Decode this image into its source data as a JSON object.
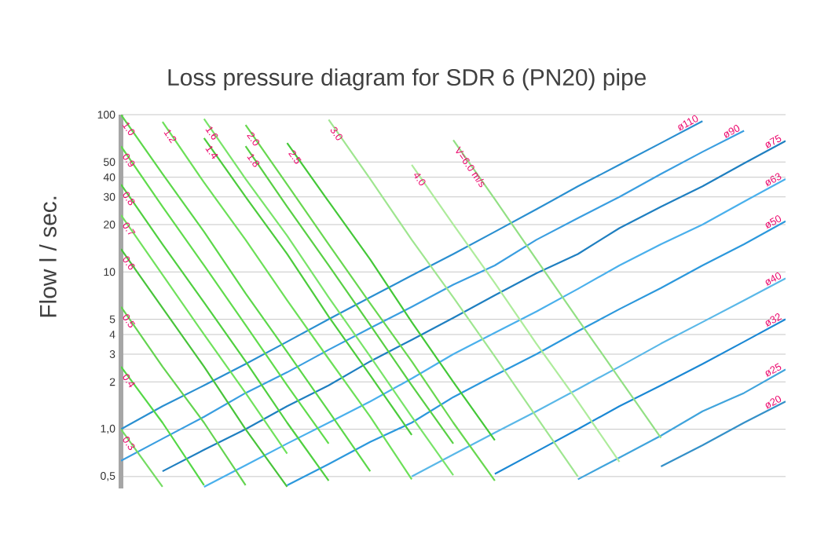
{
  "chart_data": {
    "type": "line",
    "title": "Loss pressure diagram for SDR 6 (PN20) pipe",
    "ylabel": "Flow l / sec.",
    "categories": [
      null,
      null,
      null,
      null,
      null,
      null,
      null,
      null,
      null,
      null,
      null,
      null,
      null,
      null,
      null,
      null,
      null
    ],
    "log": "y",
    "ylim": [
      0.42,
      100
    ],
    "yticks": [
      {
        "value": 0.5,
        "label": "0,5"
      },
      {
        "value": 1,
        "label": "1,0"
      },
      2,
      3,
      4,
      5,
      10,
      20,
      30,
      40,
      50,
      100
    ],
    "tick_labels": "y",
    "grid": true,
    "legend": false,
    "marker": "none",
    "line_style": "solid",
    "series": [
      {
        "name": "ø110",
        "color": "#2a8fd0",
        "values": [
          1.0,
          1.4,
          1.9,
          2.6,
          3.6,
          5.0,
          6.9,
          9.5,
          13,
          18,
          25,
          35,
          48,
          66,
          91,
          null,
          null
        ]
      },
      {
        "name": "ø90",
        "color": "#3a9ee0",
        "values": [
          0.63,
          0.87,
          1.2,
          1.7,
          2.3,
          3.2,
          4.4,
          6.0,
          8.3,
          11,
          16,
          22,
          30,
          42,
          58,
          79,
          null
        ]
      },
      {
        "name": "ø75",
        "color": "#1f7fc0",
        "values": [
          null,
          0.54,
          0.74,
          1.0,
          1.4,
          1.9,
          2.7,
          3.7,
          5.1,
          7.1,
          9.8,
          13,
          19,
          26,
          35,
          49,
          68
        ]
      },
      {
        "name": "ø63",
        "color": "#4ab0ec",
        "values": [
          null,
          null,
          0.43,
          0.59,
          0.81,
          1.1,
          1.5,
          2.1,
          3.0,
          4.1,
          5.6,
          7.8,
          11,
          15,
          20,
          28,
          39
        ]
      },
      {
        "name": "ø50",
        "color": "#2c98dc",
        "values": [
          null,
          null,
          null,
          null,
          0.44,
          0.6,
          0.83,
          1.1,
          1.6,
          2.2,
          3.0,
          4.2,
          5.8,
          7.9,
          11,
          15,
          21
        ]
      },
      {
        "name": "ø40",
        "color": "#5ab8e8",
        "values": [
          null,
          null,
          null,
          null,
          null,
          null,
          null,
          0.5,
          0.69,
          0.95,
          1.3,
          1.8,
          2.5,
          3.5,
          4.8,
          6.6,
          9.1
        ]
      },
      {
        "name": "ø32",
        "color": "#1b88d4",
        "values": [
          null,
          null,
          null,
          null,
          null,
          null,
          null,
          null,
          null,
          0.52,
          0.72,
          1.0,
          1.4,
          1.9,
          2.6,
          3.6,
          5.0
        ]
      },
      {
        "name": "ø25",
        "color": "#40a4dc",
        "values": [
          null,
          null,
          null,
          null,
          null,
          null,
          null,
          null,
          null,
          null,
          null,
          0.48,
          0.66,
          0.91,
          1.3,
          1.7,
          2.4
        ]
      },
      {
        "name": "ø20",
        "color": "#3490c8",
        "values": [
          null,
          null,
          null,
          null,
          null,
          null,
          null,
          null,
          null,
          null,
          null,
          null,
          null,
          0.58,
          0.79,
          1.1,
          1.5
        ]
      },
      {
        "name": "1.0",
        "color": "#5cd84a",
        "values": [
          100,
          42,
          18,
          7.3,
          3.1,
          1.3,
          0.54,
          null,
          null,
          null,
          null,
          null,
          null,
          null,
          null,
          null,
          null
        ]
      },
      {
        "name": "1.2",
        "color": "#6ce058",
        "values": [
          null,
          90,
          37,
          16,
          6.6,
          2.8,
          1.2,
          0.48,
          null,
          null,
          null,
          null,
          null,
          null,
          null,
          null,
          null
        ]
      },
      {
        "name": "1.4",
        "color": "#4ccc3c",
        "values": [
          null,
          null,
          71,
          30,
          13,
          5.2,
          2.2,
          0.92,
          null,
          null,
          null,
          null,
          null,
          null,
          null,
          null,
          null
        ]
      },
      {
        "name": "1.6",
        "color": "#78e468",
        "values": [
          null,
          null,
          94,
          39,
          17,
          6.9,
          2.9,
          1.2,
          0.51,
          null,
          null,
          null,
          null,
          null,
          null,
          null,
          null
        ]
      },
      {
        "name": "1.8",
        "color": "#58d044",
        "values": [
          null,
          null,
          null,
          63,
          26,
          11,
          4.6,
          1.9,
          0.81,
          null,
          null,
          null,
          null,
          null,
          null,
          null,
          null
        ]
      },
      {
        "name": "2.0",
        "color": "#68d850",
        "values": [
          null,
          null,
          null,
          86,
          36,
          15,
          6.3,
          2.7,
          1.1,
          0.47,
          null,
          null,
          null,
          null,
          null,
          null,
          null
        ]
      },
      {
        "name": "2.5",
        "color": "#44c838",
        "values": [
          null,
          null,
          null,
          null,
          66,
          28,
          12,
          4.8,
          2.0,
          0.85,
          null,
          null,
          null,
          null,
          null,
          null,
          null
        ]
      },
      {
        "name": "3.0",
        "color": "#9fe690",
        "values": [
          null,
          null,
          null,
          null,
          null,
          93,
          39,
          16,
          6.9,
          2.9,
          1.2,
          0.5,
          null,
          null,
          null,
          null,
          null
        ]
      },
      {
        "name": "4.0",
        "color": "#aeec9c",
        "values": [
          null,
          null,
          null,
          null,
          null,
          null,
          null,
          48,
          20,
          8.5,
          3.5,
          1.5,
          0.62,
          null,
          null,
          null,
          null
        ]
      },
      {
        "name": "V=6.0 m/s",
        "color": "#92e084",
        "values": [
          null,
          null,
          null,
          null,
          null,
          null,
          null,
          null,
          69,
          29,
          12,
          5.0,
          2.1,
          0.88,
          null,
          null,
          null
        ]
      },
      {
        "name": "0.9",
        "color": "#60dc4c",
        "values": [
          63,
          26,
          11,
          4.6,
          1.9,
          0.81,
          null,
          null,
          null,
          null,
          null,
          null,
          null,
          null,
          null,
          null,
          null
        ]
      },
      {
        "name": "0.8",
        "color": "#50d040",
        "values": [
          36,
          15,
          6.4,
          2.7,
          1.1,
          0.47,
          null,
          null,
          null,
          null,
          null,
          null,
          null,
          null,
          null,
          null,
          null
        ]
      },
      {
        "name": "0.7",
        "color": "#70e25c",
        "values": [
          23,
          9.6,
          4.0,
          1.7,
          0.7,
          null,
          null,
          null,
          null,
          null,
          null,
          null,
          null,
          null,
          null,
          null,
          null
        ]
      },
      {
        "name": "0.6",
        "color": "#48c43a",
        "values": [
          14,
          5.9,
          2.5,
          1.0,
          0.43,
          null,
          null,
          null,
          null,
          null,
          null,
          null,
          null,
          null,
          null,
          null,
          null
        ]
      },
      {
        "name": "0.5",
        "color": "#64d450",
        "values": [
          6.0,
          2.5,
          1.1,
          0.44,
          null,
          null,
          null,
          null,
          null,
          null,
          null,
          null,
          null,
          null,
          null,
          null,
          null
        ]
      },
      {
        "name": "0.4",
        "color": "#54d846",
        "values": [
          2.5,
          1.1,
          0.44,
          null,
          null,
          null,
          null,
          null,
          null,
          null,
          null,
          null,
          null,
          null,
          null,
          null,
          null
        ]
      },
      {
        "name": "0.3",
        "color": "#74dc62",
        "values": [
          1.0,
          0.43,
          null,
          null,
          null,
          null,
          null,
          null,
          null,
          null,
          null,
          null,
          null,
          null,
          null,
          null,
          null
        ]
      }
    ]
  }
}
